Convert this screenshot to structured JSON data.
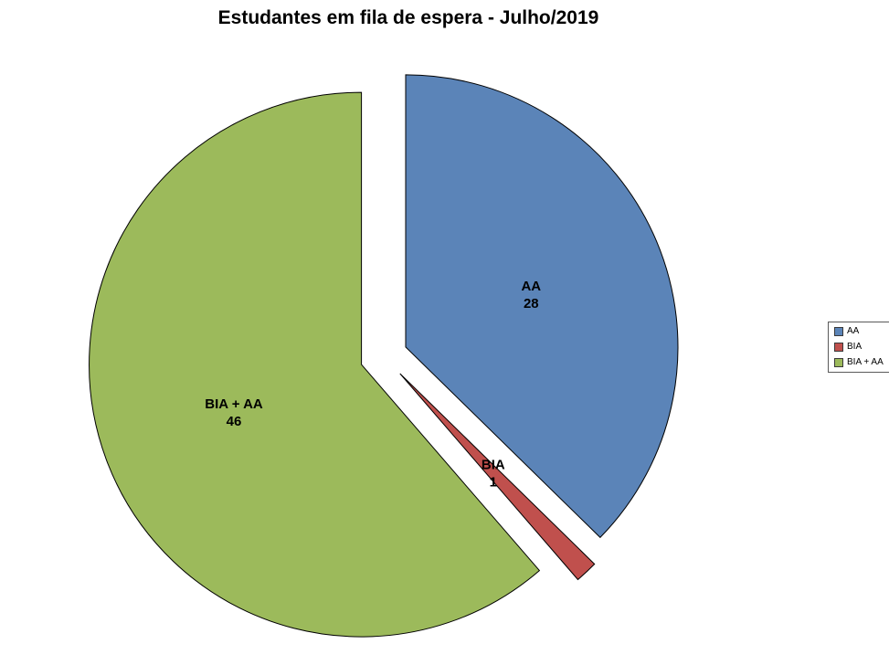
{
  "chart_data": {
    "type": "pie",
    "title": "Estudantes em fila de espera - Julho/2019",
    "categories": [
      "AA",
      "BIA",
      "BIA + AA"
    ],
    "values": [
      28,
      1,
      46
    ],
    "colors": [
      "#5b84b8",
      "#c0504d",
      "#9cba5b"
    ],
    "slice_border_color": "#000000",
    "label_color": "#000000",
    "background_color": "#ffffff",
    "start_angle_deg": 0,
    "exploded": true,
    "legend_position": "right"
  }
}
